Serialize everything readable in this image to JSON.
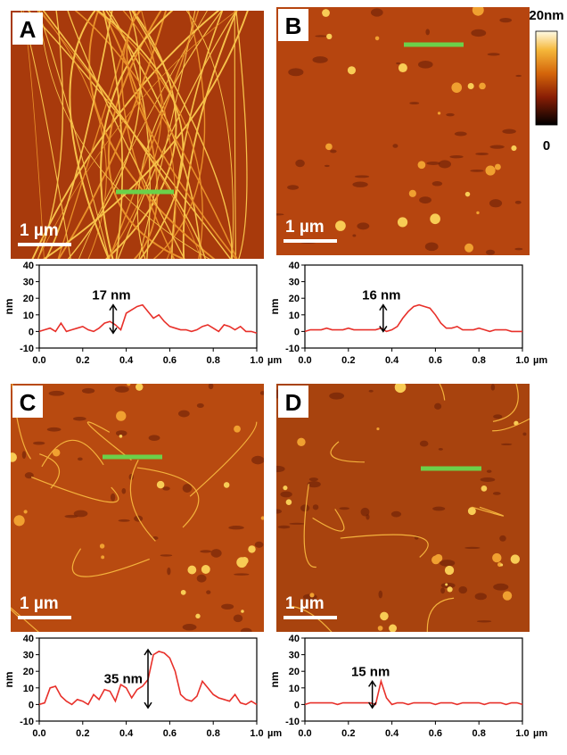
{
  "colorbar": {
    "max_label": "20nm",
    "min_label": "0"
  },
  "panels": [
    {
      "label": "A",
      "scale_bar": "1 µm"
    },
    {
      "label": "B",
      "scale_bar": "1 µm"
    },
    {
      "label": "C",
      "scale_bar": "1 µm"
    },
    {
      "label": "D",
      "scale_bar": "1 µm"
    }
  ],
  "chart_data": [
    {
      "type": "line",
      "ylabel": "nm",
      "x_unit": "µm",
      "x": [
        0,
        0.025,
        0.05,
        0.075,
        0.1,
        0.125,
        0.15,
        0.175,
        0.2,
        0.225,
        0.25,
        0.275,
        0.3,
        0.325,
        0.35,
        0.375,
        0.4,
        0.425,
        0.45,
        0.475,
        0.5,
        0.525,
        0.55,
        0.575,
        0.6,
        0.625,
        0.65,
        0.675,
        0.7,
        0.725,
        0.75,
        0.775,
        0.8,
        0.825,
        0.85,
        0.875,
        0.9,
        0.925,
        0.95,
        0.975,
        1
      ],
      "series": [
        {
          "color": "#e8302a",
          "values": [
            0,
            1,
            2,
            0,
            5,
            0,
            1,
            2,
            3,
            1,
            0,
            2,
            5,
            6,
            4,
            1,
            11,
            13,
            15,
            16,
            12,
            8,
            10,
            6,
            3,
            2,
            1,
            1,
            0,
            1,
            3,
            4,
            2,
            0,
            4,
            3,
            1,
            3,
            0,
            0,
            -1
          ]
        }
      ],
      "xlim": [
        0,
        1
      ],
      "ylim": [
        -10,
        40
      ],
      "xticks": [
        {
          "value": 0,
          "label": "0.0"
        },
        0.2,
        0.4,
        0.6,
        0.8,
        {
          "value": 1,
          "label": "1.0"
        }
      ],
      "yticks": [
        -10,
        0,
        10,
        20,
        30,
        40
      ],
      "annotation": {
        "text": "17 nm",
        "x": 0.34,
        "from": -1,
        "to": 16
      }
    },
    {
      "type": "line",
      "ylabel": "nm",
      "x_unit": "µm",
      "x": [
        0,
        0.025,
        0.05,
        0.075,
        0.1,
        0.125,
        0.15,
        0.175,
        0.2,
        0.225,
        0.25,
        0.275,
        0.3,
        0.325,
        0.35,
        0.375,
        0.4,
        0.425,
        0.45,
        0.475,
        0.5,
        0.525,
        0.55,
        0.575,
        0.6,
        0.625,
        0.65,
        0.675,
        0.7,
        0.725,
        0.75,
        0.775,
        0.8,
        0.825,
        0.85,
        0.875,
        0.9,
        0.925,
        0.95,
        0.975,
        1
      ],
      "series": [
        {
          "color": "#e8302a",
          "values": [
            0,
            1,
            1,
            1,
            2,
            1,
            1,
            1,
            2,
            1,
            1,
            1,
            1,
            1,
            2,
            0,
            1,
            3,
            8,
            12,
            15,
            16,
            15,
            14,
            10,
            5,
            2,
            2,
            3,
            1,
            1,
            1,
            2,
            1,
            0,
            1,
            1,
            1,
            0,
            0,
            0
          ]
        }
      ],
      "xlim": [
        0,
        1
      ],
      "ylim": [
        -10,
        40
      ],
      "xticks": [
        {
          "value": 0,
          "label": "0.0"
        },
        0.2,
        0.4,
        0.6,
        0.8,
        {
          "value": 1,
          "label": "1.0"
        }
      ],
      "yticks": [
        -10,
        0,
        10,
        20,
        30,
        40
      ],
      "annotation": {
        "text": "16 nm",
        "x": 0.36,
        "from": 0,
        "to": 16
      }
    },
    {
      "type": "line",
      "ylabel": "nm",
      "x_unit": "µm",
      "x": [
        0,
        0.025,
        0.05,
        0.075,
        0.1,
        0.125,
        0.15,
        0.175,
        0.2,
        0.225,
        0.25,
        0.275,
        0.3,
        0.325,
        0.35,
        0.375,
        0.4,
        0.425,
        0.45,
        0.475,
        0.5,
        0.525,
        0.55,
        0.575,
        0.6,
        0.625,
        0.65,
        0.675,
        0.7,
        0.725,
        0.75,
        0.775,
        0.8,
        0.825,
        0.85,
        0.875,
        0.9,
        0.925,
        0.95,
        0.975,
        1
      ],
      "series": [
        {
          "color": "#e8302a",
          "values": [
            0,
            1,
            10,
            11,
            5,
            2,
            0,
            3,
            2,
            0,
            6,
            3,
            9,
            8,
            2,
            12,
            10,
            4,
            9,
            11,
            15,
            30,
            32,
            31,
            28,
            20,
            6,
            3,
            2,
            5,
            14,
            10,
            6,
            4,
            3,
            2,
            6,
            1,
            0,
            2,
            0
          ]
        }
      ],
      "xlim": [
        0,
        1
      ],
      "ylim": [
        -10,
        40
      ],
      "xticks": [
        {
          "value": 0,
          "label": "0.0"
        },
        0.2,
        0.4,
        0.6,
        0.8,
        {
          "value": 1,
          "label": "1.0"
        }
      ],
      "yticks": [
        -10,
        0,
        10,
        20,
        30,
        40
      ],
      "annotation": {
        "text": "35 nm",
        "x": 0.5,
        "from": -2,
        "to": 33
      }
    },
    {
      "type": "line",
      "ylabel": "nm",
      "x_unit": "µm",
      "x": [
        0,
        0.025,
        0.05,
        0.075,
        0.1,
        0.125,
        0.15,
        0.175,
        0.2,
        0.225,
        0.25,
        0.275,
        0.3,
        0.325,
        0.35,
        0.375,
        0.4,
        0.425,
        0.45,
        0.475,
        0.5,
        0.525,
        0.55,
        0.575,
        0.6,
        0.625,
        0.65,
        0.675,
        0.7,
        0.725,
        0.75,
        0.775,
        0.8,
        0.825,
        0.85,
        0.875,
        0.9,
        0.925,
        0.95,
        0.975,
        1
      ],
      "series": [
        {
          "color": "#e8302a",
          "values": [
            0,
            1,
            1,
            1,
            1,
            1,
            0,
            1,
            1,
            1,
            1,
            1,
            1,
            0,
            14,
            4,
            0,
            1,
            1,
            0,
            1,
            1,
            1,
            1,
            0,
            1,
            1,
            1,
            0,
            1,
            1,
            1,
            1,
            0,
            1,
            1,
            1,
            0,
            1,
            1,
            0
          ]
        }
      ],
      "xlim": [
        0,
        1
      ],
      "ylim": [
        -10,
        40
      ],
      "xticks": [
        {
          "value": 0,
          "label": "0.0"
        },
        0.2,
        0.4,
        0.6,
        0.8,
        {
          "value": 1,
          "label": "1.0"
        }
      ],
      "yticks": [
        -10,
        0,
        10,
        20,
        30,
        40
      ],
      "annotation": {
        "text": "15 nm",
        "x": 0.31,
        "from": -2,
        "to": 14
      }
    }
  ]
}
